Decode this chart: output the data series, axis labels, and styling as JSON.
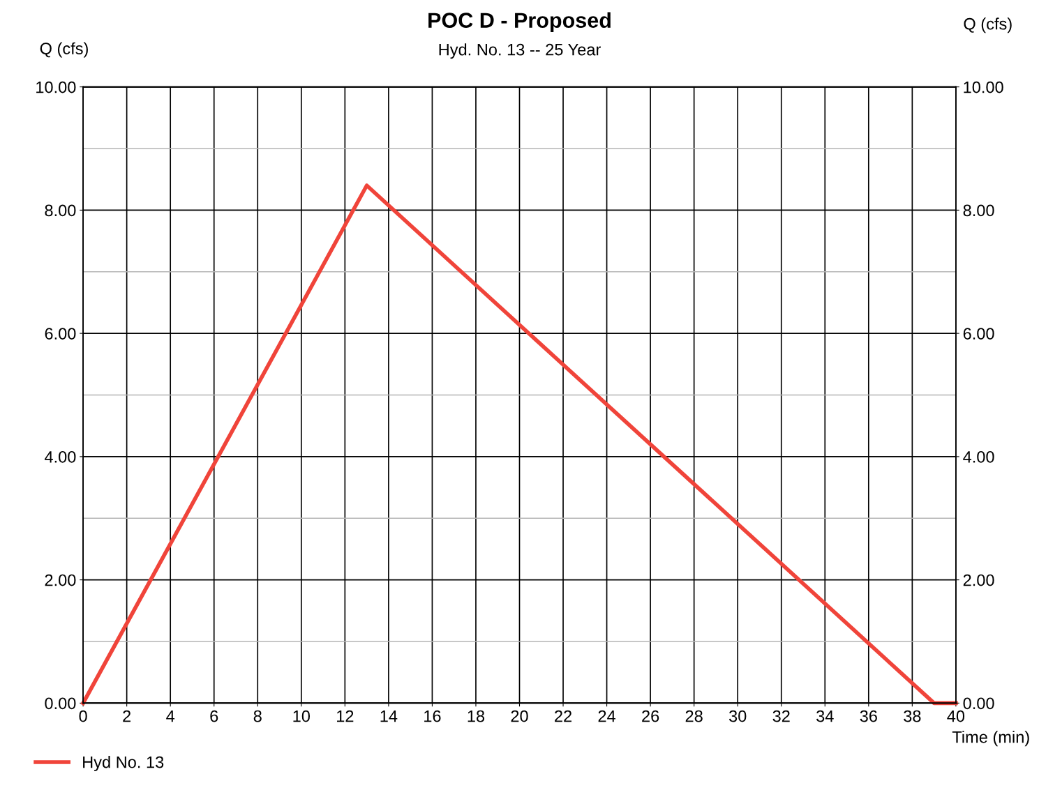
{
  "chart_data": {
    "type": "line",
    "title": "POC D - Proposed",
    "subtitle": "Hyd. No. 13 -- 25 Year",
    "xlabel": "Time (min)",
    "ylabel": "Q (cfs)",
    "y2label": "Q (cfs)",
    "series": [
      {
        "name": "Hyd No. 13",
        "color": "#f0443a",
        "x": [
          0,
          13,
          39,
          40
        ],
        "values": [
          0,
          8.4,
          0,
          0
        ]
      }
    ],
    "xlim": [
      0,
      40
    ],
    "xticks": [
      0,
      2,
      4,
      6,
      8,
      10,
      12,
      14,
      16,
      18,
      20,
      22,
      24,
      26,
      28,
      30,
      32,
      34,
      36,
      38,
      40
    ],
    "ylim": [
      0,
      10
    ],
    "yticks": [
      {
        "value": 0,
        "label": "0.00"
      },
      {
        "value": 1,
        "label": null
      },
      {
        "value": 2,
        "label": "2.00"
      },
      {
        "value": 3,
        "label": null
      },
      {
        "value": 4,
        "label": "4.00"
      },
      {
        "value": 5,
        "label": null
      },
      {
        "value": 6,
        "label": "6.00"
      },
      {
        "value": 7,
        "label": null
      },
      {
        "value": 8,
        "label": "8.00"
      },
      {
        "value": 9,
        "label": null
      },
      {
        "value": 10,
        "label": "10.00"
      }
    ],
    "y2lim": [
      0,
      10
    ],
    "y2ticks": [
      {
        "value": 0,
        "label": "0.00"
      },
      {
        "value": 2,
        "label": "2.00"
      },
      {
        "value": 4,
        "label": "4.00"
      },
      {
        "value": 6,
        "label": "6.00"
      },
      {
        "value": 8,
        "label": "8.00"
      },
      {
        "value": 10,
        "label": "10.00"
      }
    ],
    "grid": true,
    "legend": "bottom left",
    "marker": "none",
    "line_style": "solid"
  }
}
